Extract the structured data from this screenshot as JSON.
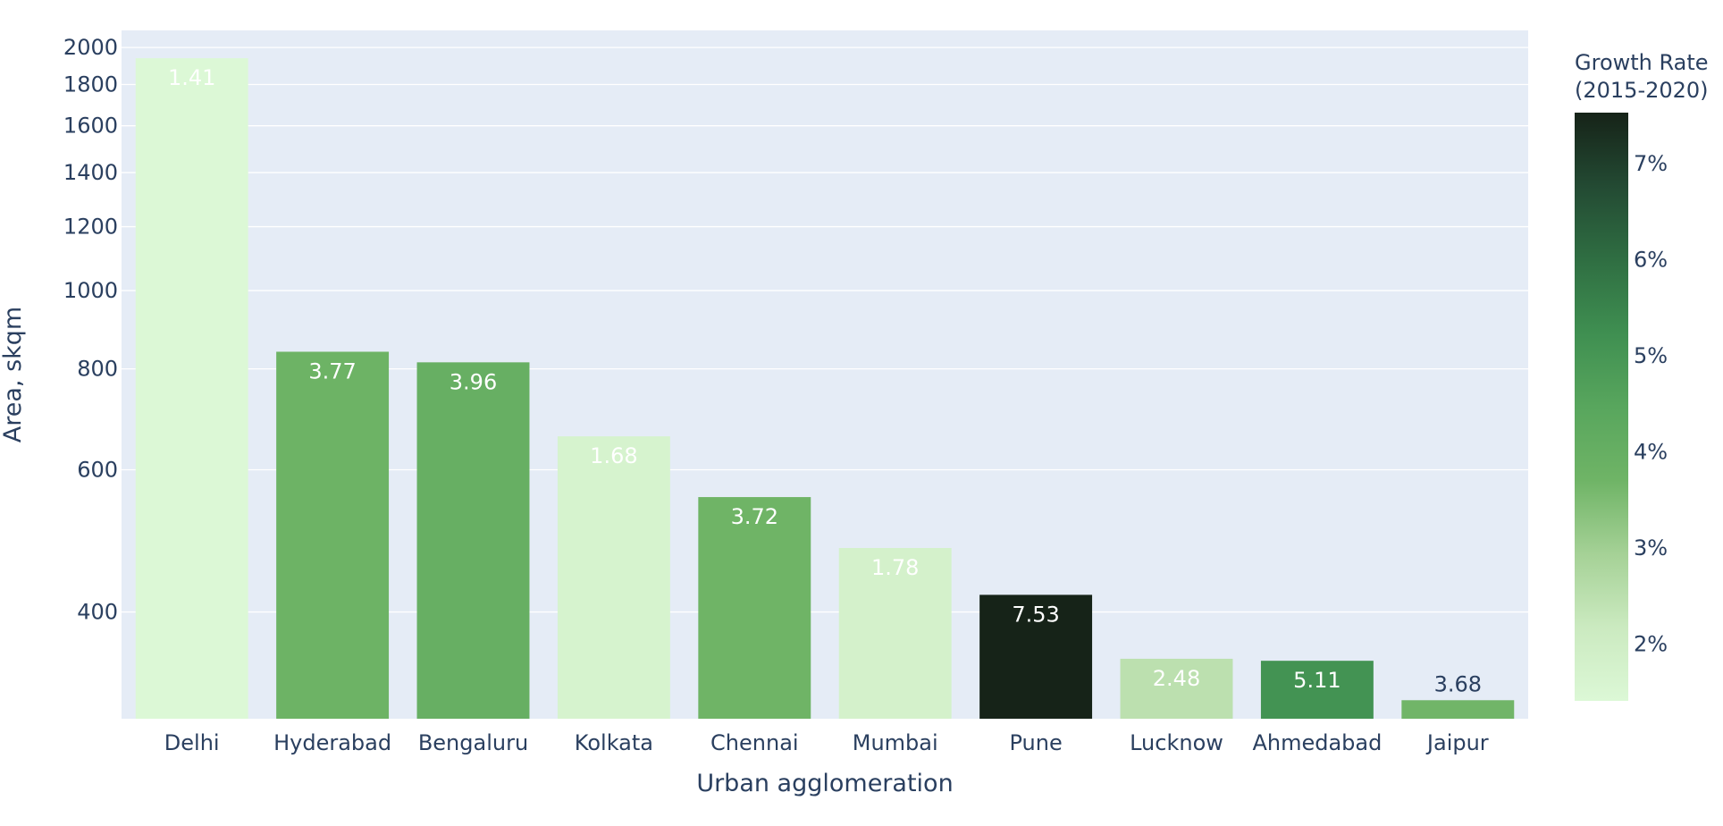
{
  "chart_data": {
    "type": "bar",
    "xlabel": "Urban agglomeration",
    "ylabel": "Area, skqm",
    "y_scale": "log",
    "ylim": [
      295,
      2100
    ],
    "grid": true,
    "y_ticks": [
      400,
      600,
      800,
      1000,
      1200,
      1400,
      1600,
      1800,
      2000
    ],
    "categories": [
      "Delhi",
      "Hyderabad",
      "Bengaluru",
      "Kolkata",
      "Chennai",
      "Mumbai",
      "Pune",
      "Lucknow",
      "Ahmedabad",
      "Jaipur"
    ],
    "values": [
      1940,
      840,
      815,
      660,
      555,
      480,
      420,
      350,
      348,
      311
    ],
    "growth_rate": [
      1.41,
      3.77,
      3.96,
      1.68,
      3.72,
      1.78,
      7.53,
      2.48,
      5.11,
      3.68
    ],
    "data_labels": [
      "1.41",
      "3.77",
      "3.96",
      "1.68",
      "3.72",
      "1.78",
      "7.53",
      "2.48",
      "5.11",
      "3.68"
    ],
    "colorbar": {
      "title_line1": "Growth Rate",
      "title_line2": "(2015-2020)",
      "range": [
        1.41,
        7.53
      ],
      "ticks": [
        2,
        3,
        4,
        5,
        6,
        7
      ],
      "tick_labels": [
        "2%",
        "3%",
        "4%",
        "5%",
        "6%",
        "7%"
      ],
      "colors": [
        "#dcf8d6",
        "#cbeac0",
        "#a5d196",
        "#6fb466",
        "#58a65d",
        "#3f8f51",
        "#2f6e42",
        "#234a33",
        "#162318"
      ]
    },
    "plot_background": "#e5ecf6",
    "text_color": "#2a3f5f"
  }
}
